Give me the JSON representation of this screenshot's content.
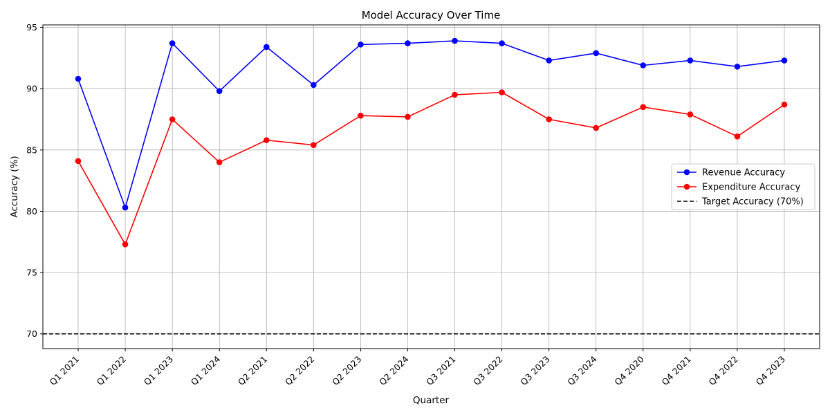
{
  "chart_data": {
    "type": "line",
    "title": "Model Accuracy Over Time",
    "xlabel": "Quarter",
    "ylabel": "Accuracy (%)",
    "categories": [
      "Q1 2021",
      "Q1 2022",
      "Q1 2023",
      "Q1 2024",
      "Q2 2021",
      "Q2 2022",
      "Q2 2023",
      "Q2 2024",
      "Q3 2021",
      "Q3 2022",
      "Q3 2023",
      "Q3 2024",
      "Q4 2020",
      "Q4 2021",
      "Q4 2022",
      "Q4 2023"
    ],
    "ylim": [
      68.8,
      95.2
    ],
    "yticks": [
      70,
      75,
      80,
      85,
      90,
      95
    ],
    "grid": true,
    "legend_position": "center-right",
    "series": [
      {
        "name": "Revenue Accuracy",
        "color": "#0000ff",
        "marker": "circle",
        "values": [
          90.8,
          80.3,
          93.7,
          89.8,
          93.4,
          90.3,
          93.6,
          93.7,
          93.9,
          93.7,
          92.3,
          92.9,
          91.9,
          92.3,
          91.8,
          92.3
        ]
      },
      {
        "name": "Expenditure Accuracy",
        "color": "#ff0000",
        "marker": "circle",
        "values": [
          84.1,
          77.3,
          87.5,
          84.0,
          85.8,
          85.4,
          87.8,
          87.7,
          89.5,
          89.7,
          87.5,
          86.8,
          88.5,
          87.9,
          86.1,
          88.7
        ]
      }
    ],
    "reference_lines": [
      {
        "name": "Target Accuracy (70%)",
        "value": 70,
        "color": "#000000",
        "style": "dashed"
      }
    ]
  }
}
